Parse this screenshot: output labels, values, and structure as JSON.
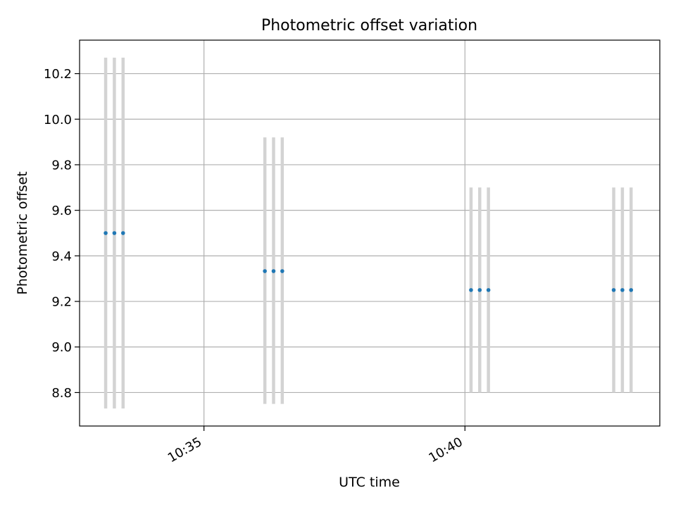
{
  "chart_data": {
    "type": "scatter",
    "title": "Photometric offset variation",
    "xlabel": "UTC time",
    "ylabel": "Photometric offset",
    "xlim": [
      "10:32:37",
      "10:43:44"
    ],
    "ylim": [
      8.653,
      10.347
    ],
    "x_ticks": [
      "10:35",
      "10:40"
    ],
    "y_ticks": [
      "8.8",
      "9.0",
      "9.2",
      "9.4",
      "9.6",
      "9.8",
      "10.0",
      "10.2"
    ],
    "grid": true,
    "points": [
      {
        "time": "10:33:07",
        "value": 9.5,
        "err_low": 8.73,
        "err_high": 10.27
      },
      {
        "time": "10:33:17",
        "value": 9.5,
        "err_low": 8.73,
        "err_high": 10.27
      },
      {
        "time": "10:33:27",
        "value": 9.5,
        "err_low": 8.73,
        "err_high": 10.27
      },
      {
        "time": "10:36:10",
        "value": 9.333,
        "err_low": 8.75,
        "err_high": 9.92
      },
      {
        "time": "10:36:20",
        "value": 9.333,
        "err_low": 8.75,
        "err_high": 9.92
      },
      {
        "time": "10:36:30",
        "value": 9.333,
        "err_low": 8.75,
        "err_high": 9.92
      },
      {
        "time": "10:40:07",
        "value": 9.25,
        "err_low": 8.8,
        "err_high": 9.7
      },
      {
        "time": "10:40:17",
        "value": 9.25,
        "err_low": 8.8,
        "err_high": 9.7
      },
      {
        "time": "10:40:27",
        "value": 9.25,
        "err_low": 8.8,
        "err_high": 9.7
      },
      {
        "time": "10:42:51",
        "value": 9.25,
        "err_low": 8.8,
        "err_high": 9.7
      },
      {
        "time": "10:43:01",
        "value": 9.25,
        "err_low": 8.8,
        "err_high": 9.7
      },
      {
        "time": "10:43:11",
        "value": 9.25,
        "err_low": 8.8,
        "err_high": 9.7
      }
    ],
    "colors": {
      "point": "#1f77b4",
      "errorbar": "#d3d3d3",
      "grid": "#b0b0b0",
      "axes": "#000000"
    }
  }
}
